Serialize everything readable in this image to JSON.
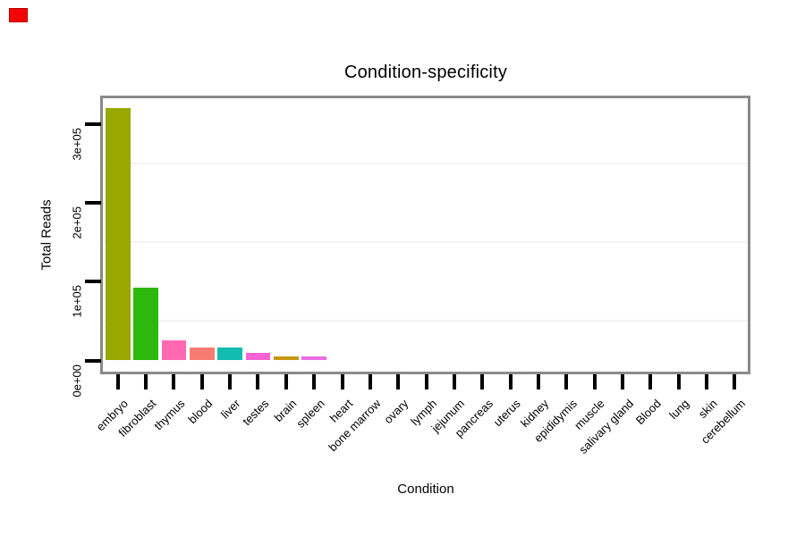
{
  "indicator": {
    "color": "#f40404"
  },
  "chart_data": {
    "type": "bar",
    "title": "Condition-specificity",
    "xlabel": "Condition",
    "ylabel": "Total Reads",
    "categories": [
      "embryo",
      "fibroblast",
      "thymus",
      "blood",
      "liver",
      "testes",
      "brain",
      "spleen",
      "heart",
      "bone marrow",
      "ovary",
      "lymph",
      "jejunum",
      "pancreas",
      "uterus",
      "kidney",
      "epididymis",
      "muscle",
      "salivary gland",
      "Blood",
      "lung",
      "skin",
      "cerebellum"
    ],
    "values": [
      320000,
      92000,
      26000,
      16000,
      16500,
      9500,
      5000,
      5600,
      0,
      0,
      0,
      0,
      0,
      0,
      0,
      0,
      0,
      0,
      0,
      0,
      0,
      0,
      0
    ],
    "bar_colors": [
      "#99a800",
      "#2db80e",
      "#ff69b4",
      "#f97c72",
      "#12bcae",
      "#f763d4",
      "#c9970e",
      "#ec6ce4",
      "#999999",
      "#999999",
      "#999999",
      "#999999",
      "#999999",
      "#999999",
      "#999999",
      "#999999",
      "#999999",
      "#999999",
      "#999999",
      "#999999",
      "#999999",
      "#999999",
      "#999999"
    ],
    "y_tick_labels": [
      "0e+00",
      "1e+05",
      "2e+05",
      "3e+05"
    ],
    "y_tick_values": [
      0,
      100000,
      200000,
      300000
    ],
    "minor_gridline_values": [
      50000,
      150000,
      250000
    ],
    "ylim": [
      0,
      340000
    ],
    "grid": "minor horizontal only",
    "legend": "none"
  }
}
